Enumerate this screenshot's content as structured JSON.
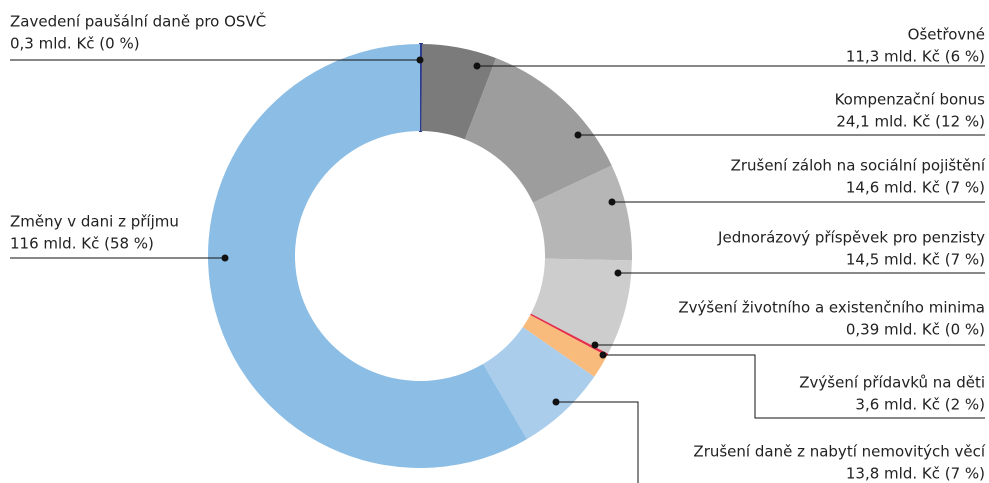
{
  "chart_data": {
    "type": "donut",
    "categories": [
      "Zavedení paušální daně pro OSVČ",
      "Ošetřovné",
      "Kompenzační bonus",
      "Zrušení záloh na sociální pojištění",
      "Jednorázový příspěvek pro penzisty",
      "Zvýšení životního a existenčního minima",
      "Zvýšení přídavků na děti",
      "Zrušení daně z nabytí nemovitých věcí",
      "Změny v dani z příjmu"
    ],
    "values": [
      0.3,
      11.3,
      24.1,
      14.6,
      14.5,
      0.39,
      3.6,
      13.8,
      116
    ],
    "value_labels": [
      "0,3 mld. Kč (0 %)",
      "11,3 mld. Kč (6 %)",
      "24,1 mld. Kč (12 %)",
      "14,6 mld. Kč (7 %)",
      "14,5 mld. Kč (7 %)",
      "0,39 mld. Kč (0 %)",
      "3,6 mld. Kč (2 %)",
      "13,8 mld. Kč (7 %)",
      "116 mld. Kč (58 %)"
    ],
    "colors": [
      "#2b3990",
      "#7b7b7b",
      "#9d9d9d",
      "#b6b6b6",
      "#cdcdcd",
      "#e2304c",
      "#f9bb7c",
      "#aacdec",
      "#8bbde5"
    ]
  }
}
